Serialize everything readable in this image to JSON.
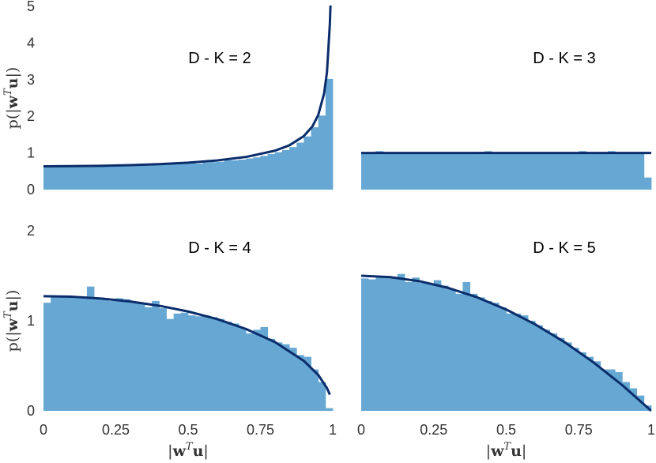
{
  "chart_data": [
    {
      "type": "bar",
      "title": "D - K = 2",
      "ylabel": "p(|w^T u|)",
      "xlabel": "",
      "xlim": [
        0,
        1
      ],
      "ylim": [
        0,
        5
      ],
      "yticks": [
        "0",
        "1",
        "2",
        "3",
        "4",
        "5"
      ],
      "xticks": [],
      "bar_color": "#66a8d3",
      "curve_color": "#0b2d6b",
      "bins": 40,
      "histogram": [
        0.62,
        0.63,
        0.63,
        0.63,
        0.62,
        0.64,
        0.63,
        0.64,
        0.65,
        0.64,
        0.66,
        0.66,
        0.67,
        0.67,
        0.68,
        0.69,
        0.69,
        0.7,
        0.71,
        0.72,
        0.72,
        0.71,
        0.74,
        0.75,
        0.76,
        0.8,
        0.8,
        0.82,
        0.85,
        0.88,
        0.92,
        0.97,
        1.02,
        1.08,
        1.16,
        1.28,
        1.45,
        1.7,
        2.02,
        3.02
      ],
      "curve": {
        "x": [
          0,
          0.1,
          0.2,
          0.3,
          0.4,
          0.5,
          0.6,
          0.7,
          0.8,
          0.85,
          0.9,
          0.93,
          0.95,
          0.97,
          0.98,
          0.99,
          0.993
        ],
        "y": [
          0.637,
          0.64,
          0.65,
          0.667,
          0.695,
          0.735,
          0.796,
          0.891,
          1.061,
          1.208,
          1.46,
          1.728,
          2.039,
          2.617,
          3.198,
          4.514,
          5.2
        ]
      }
    },
    {
      "type": "bar",
      "title": "D - K = 3",
      "ylabel": "",
      "xlabel": "",
      "xlim": [
        0,
        1
      ],
      "ylim": [
        0,
        5
      ],
      "yticks": [],
      "xticks": [],
      "bar_color": "#66a8d3",
      "curve_color": "#0b2d6b",
      "bins": 40,
      "histogram": [
        0.98,
        1.01,
        1.05,
        0.99,
        1.0,
        0.98,
        1.02,
        0.99,
        1.0,
        1.01,
        0.98,
        1.0,
        0.99,
        1.02,
        0.97,
        1.0,
        1.03,
        1.05,
        0.98,
        1.0,
        1.0,
        0.99,
        1.02,
        0.98,
        1.0,
        1.01,
        0.98,
        0.99,
        1.0,
        0.98,
        1.05,
        1.0,
        0.98,
        0.99,
        1.05,
        1.0,
        0.98,
        1.0,
        1.0,
        0.33
      ],
      "curve": {
        "x": [
          0,
          1
        ],
        "y": [
          1,
          1
        ]
      }
    },
    {
      "type": "bar",
      "title": "D - K = 4",
      "ylabel": "p(|w^T u|)",
      "xlabel": "|w^T u|",
      "xlim": [
        0,
        1
      ],
      "ylim": [
        0,
        2
      ],
      "yticks": [
        "0",
        "1",
        "2"
      ],
      "xticks": [
        "0",
        "0.25",
        "0.5",
        "0.75",
        "1"
      ],
      "bar_color": "#66a8d3",
      "curve_color": "#0b2d6b",
      "bins": 40,
      "histogram": [
        1.2,
        1.26,
        1.28,
        1.28,
        1.26,
        1.27,
        1.38,
        1.25,
        1.25,
        1.22,
        1.25,
        1.24,
        1.2,
        1.19,
        1.15,
        1.22,
        1.14,
        1.02,
        1.08,
        1.09,
        1.06,
        1.05,
        1.06,
        1.04,
        1.02,
        0.99,
        0.97,
        0.92,
        0.86,
        0.9,
        0.93,
        0.8,
        0.76,
        0.74,
        0.7,
        0.62,
        0.6,
        0.46,
        0.32,
        0.03
      ],
      "curve": {
        "x": [
          0,
          0.1,
          0.2,
          0.3,
          0.4,
          0.5,
          0.6,
          0.7,
          0.8,
          0.9,
          0.95,
          0.98,
          0.99
        ],
        "y": [
          1.273,
          1.267,
          1.247,
          1.214,
          1.167,
          1.103,
          1.019,
          0.909,
          0.764,
          0.555,
          0.398,
          0.253,
          0.18
        ]
      }
    },
    {
      "type": "bar",
      "title": "D - K = 5",
      "ylabel": "",
      "xlabel": "|w^T u|",
      "xlim": [
        0,
        1
      ],
      "ylim": [
        0,
        2
      ],
      "yticks": [],
      "xticks": [
        "0",
        "0.25",
        "0.5",
        "0.75",
        "1"
      ],
      "bar_color": "#66a8d3",
      "curve_color": "#0b2d6b",
      "bins": 40,
      "histogram": [
        1.47,
        1.46,
        1.48,
        1.49,
        1.47,
        1.52,
        1.43,
        1.48,
        1.42,
        1.41,
        1.45,
        1.39,
        1.35,
        1.3,
        1.43,
        1.3,
        1.26,
        1.22,
        1.2,
        1.15,
        1.08,
        1.08,
        1.06,
        1.0,
        0.95,
        0.9,
        0.86,
        0.81,
        0.76,
        0.7,
        0.65,
        0.6,
        0.55,
        0.46,
        0.46,
        0.43,
        0.32,
        0.25,
        0.17,
        0.06
      ],
      "curve": {
        "x": [
          0,
          0.1,
          0.2,
          0.3,
          0.4,
          0.5,
          0.6,
          0.7,
          0.8,
          0.9,
          1.0
        ],
        "y": [
          1.5,
          1.485,
          1.44,
          1.365,
          1.26,
          1.125,
          0.96,
          0.765,
          0.54,
          0.285,
          0.0
        ]
      }
    }
  ]
}
